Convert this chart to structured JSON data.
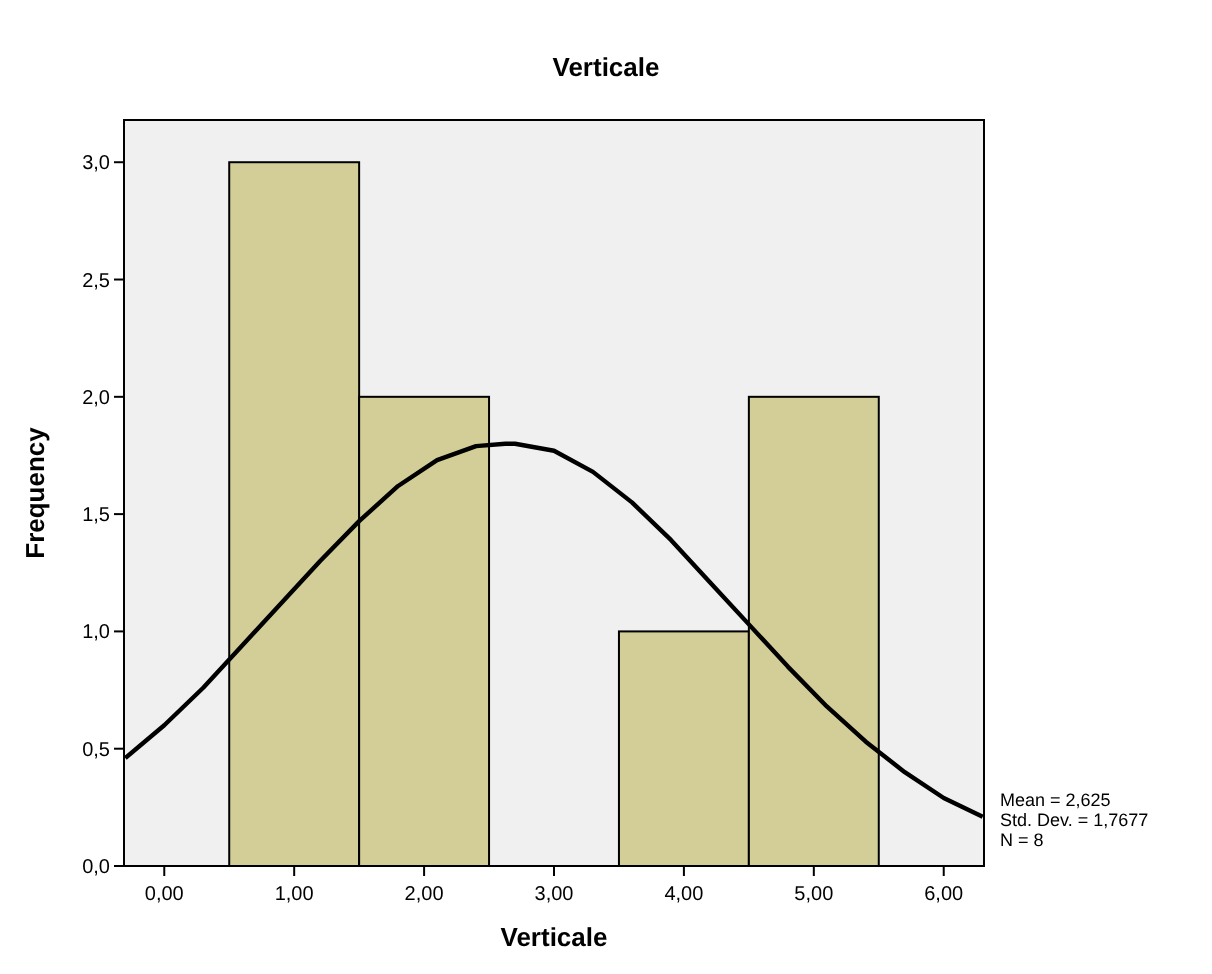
{
  "chart_data": {
    "type": "histogram",
    "title": "Verticale",
    "xlabel": "Verticale",
    "ylabel": "Frequency",
    "series": [
      {
        "bins": [
          0.5,
          1.5,
          2.5,
          3.5,
          4.5,
          5.5
        ],
        "values": [
          3,
          2,
          0,
          1,
          2
        ],
        "color": "#d3ce97"
      },
      {
        "type": "line",
        "x": [
          -0.3,
          0,
          0.3,
          0.6,
          0.9,
          1.2,
          1.5,
          1.8,
          2.1,
          2.4,
          2.625,
          2.7,
          3.0,
          3.3,
          3.6,
          3.9,
          4.2,
          4.5,
          4.8,
          5.1,
          5.4,
          5.7,
          6.0,
          6.3
        ],
        "values": [
          0.46,
          0.6,
          0.76,
          0.94,
          1.12,
          1.3,
          1.47,
          1.62,
          1.73,
          1.79,
          1.8,
          1.8,
          1.77,
          1.68,
          1.55,
          1.39,
          1.21,
          1.03,
          0.85,
          0.68,
          0.53,
          0.4,
          0.29,
          0.21
        ],
        "color": "#000000",
        "marker": "none",
        "line_style": "solid"
      }
    ],
    "xlim": [
      -0.31,
      6.31
    ],
    "ylim": [
      0,
      3.18
    ],
    "xticks": [
      {
        "value": 0,
        "label": "0,00"
      },
      {
        "value": 1,
        "label": "1,00"
      },
      {
        "value": 2,
        "label": "2,00"
      },
      {
        "value": 3,
        "label": "3,00"
      },
      {
        "value": 4,
        "label": "4,00"
      },
      {
        "value": 5,
        "label": "5,00"
      },
      {
        "value": 6,
        "label": "6,00"
      }
    ],
    "yticks": [
      {
        "value": 0,
        "label": "0,0"
      },
      {
        "value": 0.5,
        "label": "0,5"
      },
      {
        "value": 1,
        "label": "1,0"
      },
      {
        "value": 1.5,
        "label": "1,5"
      },
      {
        "value": 2,
        "label": "2,0"
      },
      {
        "value": 2.5,
        "label": "2,5"
      },
      {
        "value": 3,
        "label": "3,0"
      }
    ],
    "grid": false,
    "annotations": [
      "Mean = 2,625",
      "Std. Dev. = 1,7677",
      "N = 8"
    ]
  }
}
